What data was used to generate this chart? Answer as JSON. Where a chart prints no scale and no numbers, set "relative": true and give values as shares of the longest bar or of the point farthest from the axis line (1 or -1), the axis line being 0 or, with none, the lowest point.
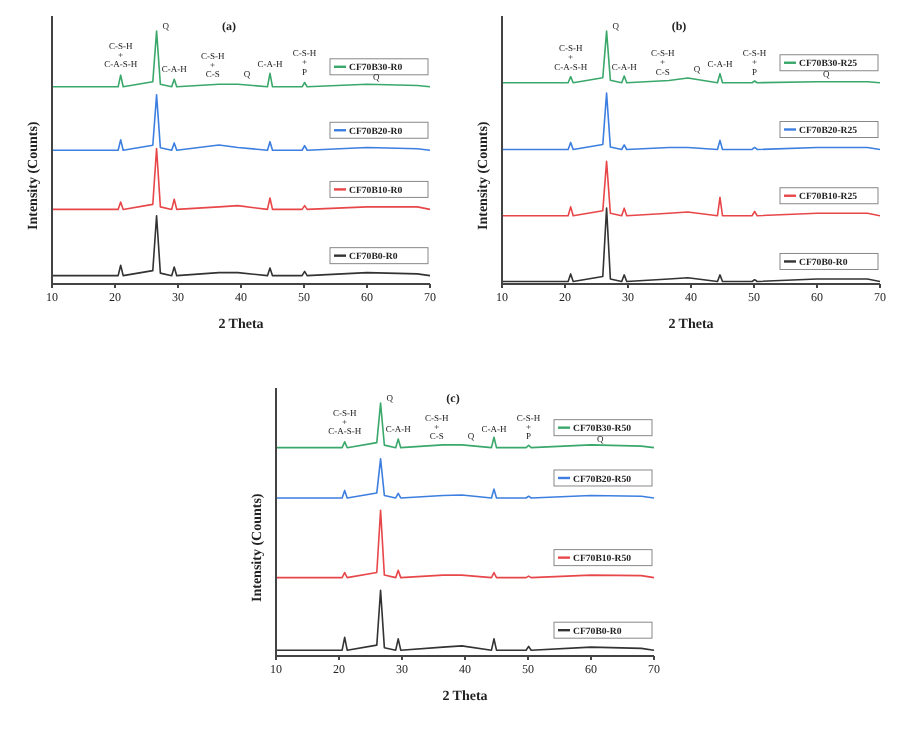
{
  "chart_data": [
    {
      "type": "line",
      "title": "(a)",
      "legend": "right",
      "xlabel": "2 Theta",
      "ylabel": "Intensity (Counts)",
      "relative": true,
      "xlim": [
        10,
        70
      ],
      "xticks": [
        10,
        20,
        30,
        40,
        50,
        60,
        70
      ],
      "x": [
        10,
        20.5,
        20.9,
        21.3,
        26.0,
        26.6,
        27.2,
        29.0,
        29.4,
        29.8,
        36.5,
        39.5,
        44.2,
        44.6,
        45.0,
        49.7,
        50.1,
        50.5,
        60,
        68,
        70
      ],
      "series": [
        {
          "name": "CF70B0-R0",
          "color": "#333333",
          "values": [
            0.033,
            0.033,
            0.074,
            0.033,
            0.053,
            0.27,
            0.043,
            0.033,
            0.067,
            0.033,
            0.045,
            0.045,
            0.033,
            0.063,
            0.033,
            0.033,
            0.05,
            0.033,
            0.045,
            0.04,
            0.033
          ]
        },
        {
          "name": "CF70B10-R0",
          "color": "#e8474a",
          "values": [
            0.295,
            0.295,
            0.324,
            0.295,
            0.315,
            0.536,
            0.305,
            0.295,
            0.335,
            0.295,
            0.305,
            0.31,
            0.295,
            0.34,
            0.295,
            0.295,
            0.31,
            0.295,
            0.305,
            0.305,
            0.295
          ]
        },
        {
          "name": "CF70B20-R0",
          "color": "#3d7fe0",
          "values": [
            0.529,
            0.529,
            0.57,
            0.529,
            0.549,
            0.748,
            0.539,
            0.529,
            0.558,
            0.529,
            0.55,
            0.54,
            0.529,
            0.563,
            0.529,
            0.529,
            0.547,
            0.529,
            0.54,
            0.535,
            0.529
          ]
        },
        {
          "name": "CF70B30-R0",
          "color": "#3aa86b",
          "values": [
            0.78,
            0.78,
            0.826,
            0.78,
            0.8,
            1,
            0.79,
            0.78,
            0.81,
            0.78,
            0.79,
            0.79,
            0.78,
            0.833,
            0.78,
            0.78,
            0.797,
            0.78,
            0.79,
            0.785,
            0.78
          ]
        }
      ],
      "annotations": [
        {
          "text": "C-S-H\n+\nC-A-S-H",
          "x": 20.9,
          "y": 0.85
        },
        {
          "text": "Q",
          "x": 26.6,
          "y": 1
        },
        {
          "text": "C-A-H",
          "x": 29.4,
          "y": 0.83
        },
        {
          "text": "C-S-H\n+\nC-S",
          "x": 35.5,
          "y": 0.81
        },
        {
          "text": "Q",
          "x": 39.5,
          "y": 0.81
        },
        {
          "text": "C-A-H",
          "x": 44.6,
          "y": 0.85
        },
        {
          "text": "C-S-H\n+\nP",
          "x": 50.1,
          "y": 0.82
        },
        {
          "text": "Q",
          "x": 60,
          "y": 0.8
        }
      ]
    },
    {
      "type": "line",
      "title": "(b)",
      "legend": "right",
      "xlabel": "2 Theta",
      "ylabel": "Intensity (Counts)",
      "relative": true,
      "xlim": [
        10,
        70
      ],
      "xticks": [
        10,
        20,
        30,
        40,
        50,
        60,
        70
      ],
      "x": [
        10,
        20.5,
        20.9,
        21.3,
        26.0,
        26.6,
        27.2,
        29.0,
        29.4,
        29.8,
        36.5,
        39.5,
        44.2,
        44.6,
        45.0,
        49.7,
        50.1,
        50.5,
        60,
        68,
        70
      ],
      "series": [
        {
          "name": "CF70B0-R0",
          "color": "#333333",
          "values": [
            0.01,
            0.01,
            0.04,
            0.01,
            0.03,
            0.3,
            0.02,
            0.01,
            0.036,
            0.01,
            0.02,
            0.025,
            0.01,
            0.036,
            0.01,
            0.01,
            0.017,
            0.01,
            0.02,
            0.02,
            0.01
          ]
        },
        {
          "name": "CF70B10-R25",
          "color": "#e8474a",
          "values": [
            0.27,
            0.27,
            0.305,
            0.27,
            0.29,
            0.485,
            0.28,
            0.27,
            0.3,
            0.27,
            0.28,
            0.285,
            0.27,
            0.343,
            0.27,
            0.27,
            0.287,
            0.27,
            0.28,
            0.28,
            0.27
          ]
        },
        {
          "name": "CF70B20-R25",
          "color": "#3d7fe0",
          "values": [
            0.532,
            0.532,
            0.56,
            0.532,
            0.552,
            0.755,
            0.542,
            0.532,
            0.55,
            0.532,
            0.54,
            0.54,
            0.532,
            0.568,
            0.532,
            0.532,
            0.54,
            0.532,
            0.54,
            0.54,
            0.532
          ]
        },
        {
          "name": "CF70B30-R25",
          "color": "#3aa86b",
          "values": [
            0.796,
            0.796,
            0.82,
            0.796,
            0.816,
            1,
            0.806,
            0.796,
            0.823,
            0.796,
            0.805,
            0.815,
            0.796,
            0.832,
            0.796,
            0.796,
            0.803,
            0.796,
            0.8,
            0.8,
            0.796
          ]
        }
      ],
      "annotations": [
        {
          "text": "C-S-H\n+\nC-A-S-H",
          "x": 20.9,
          "y": 0.84
        },
        {
          "text": "Q",
          "x": 26.6,
          "y": 1
        },
        {
          "text": "C-A-H",
          "x": 29.4,
          "y": 0.84
        },
        {
          "text": "C-S-H\n+\nC-S",
          "x": 35.5,
          "y": 0.82
        },
        {
          "text": "Q",
          "x": 39.5,
          "y": 0.83
        },
        {
          "text": "C-A-H",
          "x": 44.6,
          "y": 0.85
        },
        {
          "text": "C-S-H\n+\nP",
          "x": 50.1,
          "y": 0.82
        },
        {
          "text": "Q",
          "x": 60,
          "y": 0.81
        }
      ]
    },
    {
      "type": "line",
      "title": "(c)",
      "legend": "right",
      "xlabel": "2 Theta",
      "ylabel": "Intensity (Counts)",
      "relative": true,
      "xlim": [
        10,
        70
      ],
      "xticks": [
        10,
        20,
        30,
        40,
        50,
        60,
        70
      ],
      "x": [
        10,
        20.5,
        20.9,
        21.3,
        26.0,
        26.6,
        27.2,
        29.0,
        29.4,
        29.8,
        36.5,
        39.5,
        44.2,
        44.6,
        45.0,
        49.7,
        50.1,
        50.5,
        60,
        68,
        70
      ],
      "series": [
        {
          "name": "CF70B0-R0",
          "color": "#333333",
          "values": [
            0.023,
            0.023,
            0.074,
            0.023,
            0.043,
            0.26,
            0.033,
            0.023,
            0.068,
            0.023,
            0.035,
            0.04,
            0.023,
            0.068,
            0.023,
            0.023,
            0.038,
            0.023,
            0.035,
            0.03,
            0.023
          ]
        },
        {
          "name": "CF70B10-R50",
          "color": "#e8474a",
          "values": [
            0.31,
            0.31,
            0.33,
            0.31,
            0.33,
            0.576,
            0.32,
            0.31,
            0.339,
            0.31,
            0.32,
            0.32,
            0.31,
            0.33,
            0.31,
            0.31,
            0.316,
            0.31,
            0.32,
            0.318,
            0.31
          ]
        },
        {
          "name": "CF70B20-R50",
          "color": "#3d7fe0",
          "values": [
            0.625,
            0.625,
            0.655,
            0.625,
            0.645,
            0.78,
            0.635,
            0.625,
            0.643,
            0.625,
            0.635,
            0.637,
            0.625,
            0.66,
            0.625,
            0.625,
            0.632,
            0.625,
            0.635,
            0.632,
            0.625
          ]
        },
        {
          "name": "CF70B30-R50",
          "color": "#3aa86b",
          "values": [
            0.824,
            0.824,
            0.847,
            0.824,
            0.844,
            1,
            0.834,
            0.824,
            0.858,
            0.824,
            0.835,
            0.835,
            0.824,
            0.865,
            0.824,
            0.824,
            0.833,
            0.824,
            0.835,
            0.83,
            0.824
          ]
        }
      ],
      "annotations": [
        {
          "text": "C-S-H\n+\nC-A-S-H",
          "x": 20.9,
          "y": 0.87
        },
        {
          "text": "Q",
          "x": 26.6,
          "y": 1
        },
        {
          "text": "C-A-H",
          "x": 29.4,
          "y": 0.88
        },
        {
          "text": "C-S-H\n+\nC-S",
          "x": 35.5,
          "y": 0.85
        },
        {
          "text": "Q",
          "x": 39.5,
          "y": 0.85
        },
        {
          "text": "C-A-H",
          "x": 44.6,
          "y": 0.88
        },
        {
          "text": "C-S-H\n+\nP",
          "x": 50.1,
          "y": 0.85
        },
        {
          "text": "Q",
          "x": 60,
          "y": 0.84
        }
      ]
    }
  ]
}
